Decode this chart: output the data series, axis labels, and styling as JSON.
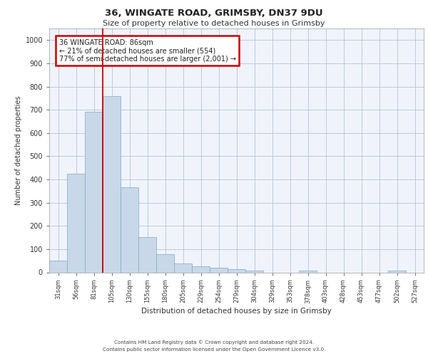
{
  "title1": "36, WINGATE ROAD, GRIMSBY, DN37 9DU",
  "title2": "Size of property relative to detached houses in Grimsby",
  "xlabel": "Distribution of detached houses by size in Grimsby",
  "ylabel": "Number of detached properties",
  "categories": [
    "31sqm",
    "56sqm",
    "81sqm",
    "105sqm",
    "130sqm",
    "155sqm",
    "180sqm",
    "205sqm",
    "229sqm",
    "254sqm",
    "279sqm",
    "304sqm",
    "329sqm",
    "353sqm",
    "378sqm",
    "403sqm",
    "428sqm",
    "453sqm",
    "477sqm",
    "502sqm",
    "527sqm"
  ],
  "values": [
    50,
    425,
    690,
    760,
    365,
    153,
    78,
    38,
    27,
    20,
    15,
    9,
    0,
    0,
    9,
    0,
    0,
    0,
    0,
    9,
    0
  ],
  "bar_color": "#c8d8e8",
  "bar_edge_color": "#7aaac8",
  "bar_width": 1.0,
  "red_line_x": 2.5,
  "annotation_text": "36 WINGATE ROAD: 86sqm\n← 21% of detached houses are smaller (554)\n77% of semi-detached houses are larger (2,001) →",
  "annotation_box_color": "#ffffff",
  "annotation_box_edge": "#cc0000",
  "ylim": [
    0,
    1050
  ],
  "yticks": [
    0,
    100,
    200,
    300,
    400,
    500,
    600,
    700,
    800,
    900,
    1000
  ],
  "grid_color": "#b0c4de",
  "background_color": "#f0f4fa",
  "footer_line1": "Contains HM Land Registry data © Crown copyright and database right 2024.",
  "footer_line2": "Contains public sector information licensed under the Open Government Licence v3.0."
}
